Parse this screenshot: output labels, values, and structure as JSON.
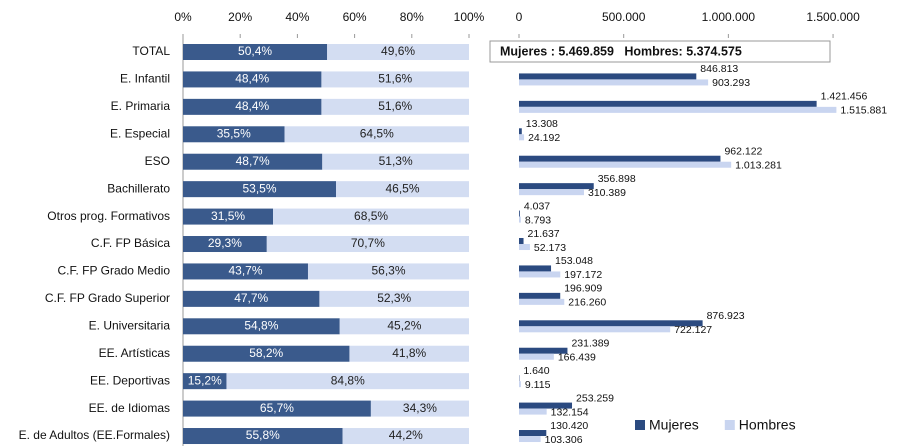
{
  "chart_data": [
    {
      "type": "stacked-bar-horizontal",
      "categories": [
        "TOTAL",
        "E. Infantil",
        "E. Primaria",
        "E. Especial",
        "ESO",
        "Bachillerato",
        "Otros prog. Formativos",
        "C.F. FP Básica",
        "C.F. FP Grado Medio",
        "C.F. FP Grado Superior",
        "E. Universitaria",
        "EE. Artísticas",
        "EE. Deportivas",
        "EE. de Idiomas",
        "E. de Adultos (EE.Formales)"
      ],
      "series": [
        {
          "color": "#3a5a8c",
          "values": [
            50.4,
            48.4,
            48.4,
            35.5,
            48.7,
            53.5,
            31.5,
            29.3,
            43.7,
            47.7,
            54.8,
            58.2,
            15.2,
            65.7,
            55.8
          ],
          "value_labels": [
            "50,4%",
            "48,4%",
            "48,4%",
            "35,5%",
            "48,7%",
            "53,5%",
            "31,5%",
            "29,3%",
            "43,7%",
            "47,7%",
            "54,8%",
            "58,2%",
            "15,2%",
            "65,7%",
            "55,8%"
          ]
        },
        {
          "color": "#d3ddf2",
          "values": [
            49.6,
            51.6,
            51.6,
            64.5,
            51.3,
            46.5,
            68.5,
            70.7,
            56.3,
            52.3,
            45.2,
            41.8,
            84.8,
            34.3,
            44.2
          ],
          "value_labels": [
            "49,6%",
            "51,6%",
            "51,6%",
            "64,5%",
            "51,3%",
            "46,5%",
            "68,5%",
            "70,7%",
            "56,3%",
            "52,3%",
            "45,2%",
            "41,8%",
            "84,8%",
            "34,3%",
            "44,2%"
          ]
        }
      ],
      "xlim": [
        0,
        100
      ],
      "xticks": [
        {
          "value": 0,
          "label": "0%"
        },
        {
          "value": 20,
          "label": "20%"
        },
        {
          "value": 40,
          "label": "40%"
        },
        {
          "value": 60,
          "label": "60%"
        },
        {
          "value": 80,
          "label": "80%"
        },
        {
          "value": 100,
          "label": "100%"
        }
      ]
    },
    {
      "type": "grouped-bar-horizontal",
      "annotation": "Mujeres : 5.469.859   Hombres: 5.374.575",
      "series": [
        {
          "name": "Mujeres",
          "color": "#2b4a80",
          "values": [
            846813,
            1421456,
            13308,
            962122,
            356898,
            4037,
            21637,
            153048,
            196909,
            876923,
            231389,
            1640,
            253259,
            130420
          ],
          "value_labels": [
            "846.813",
            "1.421.456",
            "13.308",
            "962.122",
            "356.898",
            "4.037",
            "21.637",
            "153.048",
            "196.909",
            "876.923",
            "231.389",
            "1.640",
            "253.259",
            "130.420"
          ]
        },
        {
          "name": "Hombres",
          "color": "#c9d5f0",
          "values": [
            903293,
            1515881,
            24192,
            1013281,
            310389,
            8793,
            52173,
            197172,
            216260,
            722127,
            166439,
            9115,
            132154,
            103306
          ],
          "value_labels": [
            "903.293",
            "1.515.881",
            "24.192",
            "1.013.281",
            "310.389",
            "8.793",
            "52.173",
            "197.172",
            "216.260",
            "722.127",
            "166.439",
            "9.115",
            "132.154",
            "103.306"
          ]
        }
      ],
      "xlim": [
        0,
        1600000
      ],
      "xticks": [
        0,
        {
          "value": 500000,
          "label": "500.000"
        },
        {
          "value": 1000000,
          "label": "1.000.000"
        },
        {
          "value": 1500000,
          "label": "1.500.000"
        }
      ],
      "legend": "bottom-right"
    }
  ]
}
